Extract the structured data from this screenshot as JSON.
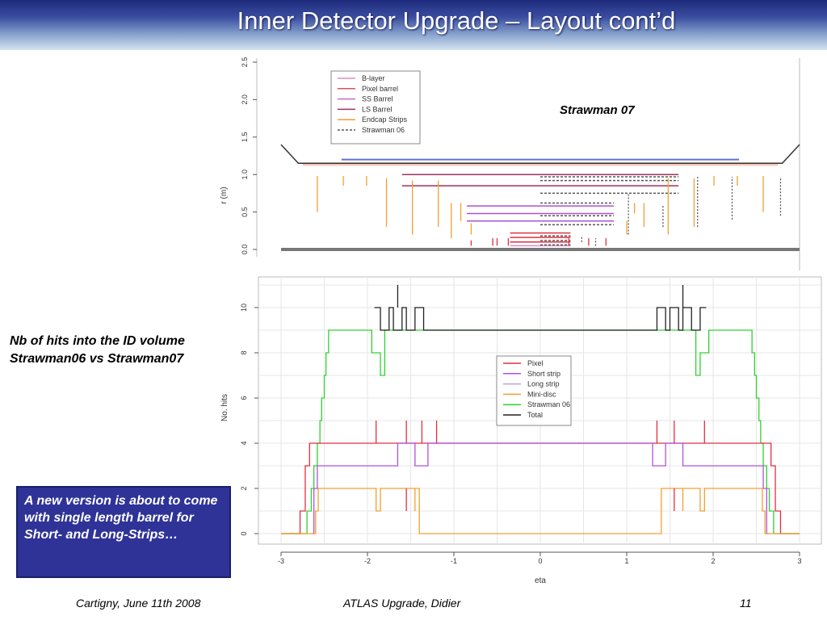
{
  "slide": {
    "title": "Inner Detector Upgrade – Layout cont’d",
    "side_label_line1": "Nb of hits into the ID volume",
    "side_label_line2": "Strawman06 vs Strawman07",
    "note": "A new version is about to come with single length barrel for Short- and Long-Strips…",
    "footer_left": "Cartigny, June 11th 2008",
    "footer_center": "ATLAS Upgrade, Didier",
    "footer_page": "11"
  },
  "chart_data": [
    {
      "type": "line",
      "annotation": "Strawman 07",
      "ylabel": "r (m)",
      "ylim": [
        0,
        2.5
      ],
      "yticks": [
        "0.0",
        "0.5",
        "1.0",
        "1.5",
        "2.0",
        "2.5"
      ],
      "legend": {
        "position": "top-left",
        "entries": [
          {
            "name": "B-layer",
            "color": "#d98fc4",
            "dashed": false
          },
          {
            "name": "Pixel barrel",
            "color": "#e0505a",
            "dashed": false
          },
          {
            "name": "SS Barrel",
            "color": "#c06ad0",
            "dashed": false
          },
          {
            "name": "LS Barrel",
            "color": "#a03060",
            "dashed": false
          },
          {
            "name": "Endcap Strips",
            "color": "#f0a030",
            "dashed": false
          },
          {
            "name": "Strawman 06",
            "color": "#555555",
            "dashed": true
          }
        ]
      },
      "segments": [
        {
          "name": "Beam pipe",
          "x": [
            -3,
            3
          ],
          "y": [
            0.0,
            0.0
          ],
          "color": "#777777",
          "width": 4
        },
        {
          "name": "Outer boundary",
          "x": [
            -3,
            -2.8,
            2.8,
            3
          ],
          "y": [
            1.4,
            1.15,
            1.15,
            1.4
          ],
          "color": "#333333",
          "width": 1.5
        },
        {
          "name": "Outer barrel",
          "x": [
            -2.3,
            2.3
          ],
          "y": [
            1.2,
            1.2
          ],
          "color": "#6070d0",
          "width": 2
        },
        {
          "name": "LS Barrel",
          "x": [
            -1.6,
            1.6
          ],
          "y": [
            1.0,
            1.0
          ],
          "color": "#a03060",
          "width": 1.5
        },
        {
          "name": "LS Barrel",
          "x": [
            -1.6,
            1.6
          ],
          "y": [
            0.85,
            0.85
          ],
          "color": "#a03060",
          "width": 1.5
        },
        {
          "name": "SS Barrel",
          "x": [
            -0.85,
            0.85
          ],
          "y": [
            0.58,
            0.58
          ],
          "color": "#b050d0",
          "width": 1.5
        },
        {
          "name": "SS Barrel",
          "x": [
            -0.85,
            0.85
          ],
          "y": [
            0.48,
            0.48
          ],
          "color": "#b050d0",
          "width": 1.5
        },
        {
          "name": "SS Barrel",
          "x": [
            -0.85,
            0.85
          ],
          "y": [
            0.38,
            0.38
          ],
          "color": "#b050d0",
          "width": 1.5
        },
        {
          "name": "Pixel barrel",
          "x": [
            -0.35,
            0.35
          ],
          "y": [
            0.22,
            0.22
          ],
          "color": "#e03040",
          "width": 1.5
        },
        {
          "name": "Pixel barrel",
          "x": [
            -0.35,
            0.35
          ],
          "y": [
            0.16,
            0.16
          ],
          "color": "#e03040",
          "width": 1.5
        },
        {
          "name": "Pixel barrel",
          "x": [
            -0.35,
            0.35
          ],
          "y": [
            0.1,
            0.1
          ],
          "color": "#e03040",
          "width": 1.5
        },
        {
          "name": "B-layer",
          "x": [
            -0.35,
            0.35
          ],
          "y": [
            0.05,
            0.05
          ],
          "color": "#d98fc4",
          "width": 1.5
        },
        {
          "name": "Strawman 06",
          "x": [
            0,
            1.6
          ],
          "y": [
            0.97,
            0.97
          ],
          "color": "#555555",
          "dashed": true
        },
        {
          "name": "Strawman 06",
          "x": [
            0,
            1.6
          ],
          "y": [
            0.92,
            0.92
          ],
          "color": "#555555",
          "dashed": true
        },
        {
          "name": "Strawman 06",
          "x": [
            0,
            1.6
          ],
          "y": [
            0.75,
            0.75
          ],
          "color": "#555555",
          "dashed": true
        },
        {
          "name": "Strawman 06",
          "x": [
            0,
            0.85
          ],
          "y": [
            0.62,
            0.62
          ],
          "color": "#555555",
          "dashed": true
        },
        {
          "name": "Strawman 06",
          "x": [
            0,
            0.85
          ],
          "y": [
            0.45,
            0.45
          ],
          "color": "#555555",
          "dashed": true
        },
        {
          "name": "Strawman 06",
          "x": [
            0,
            0.85
          ],
          "y": [
            0.33,
            0.33
          ],
          "color": "#555555",
          "dashed": true
        },
        {
          "name": "Strawman 06",
          "x": [
            0,
            0.35
          ],
          "y": [
            0.18,
            0.18
          ],
          "color": "#555555",
          "dashed": true
        },
        {
          "name": "Strawman 06",
          "x": [
            0,
            0.35
          ],
          "y": [
            0.12,
            0.12
          ],
          "color": "#555555",
          "dashed": true
        },
        {
          "name": "Strawman 06",
          "x": [
            0,
            0.35
          ],
          "y": [
            0.06,
            0.06
          ],
          "color": "#555555",
          "dashed": true
        }
      ],
      "verticals": [
        {
          "x": -2.58,
          "y": [
            0.5,
            0.98
          ],
          "color": "#f0a030"
        },
        {
          "x": -2.28,
          "y": [
            0.85,
            0.98
          ],
          "color": "#f0a030"
        },
        {
          "x": -2.01,
          "y": [
            0.85,
            0.98
          ],
          "color": "#f0a030"
        },
        {
          "x": -1.78,
          "y": [
            0.3,
            0.95
          ],
          "color": "#f0a030"
        },
        {
          "x": -1.48,
          "y": [
            0.2,
            0.92
          ],
          "color": "#f0a030"
        },
        {
          "x": -1.18,
          "y": [
            0.3,
            0.92
          ],
          "color": "#f0a030"
        },
        {
          "x": -1.03,
          "y": [
            0.15,
            0.62
          ],
          "color": "#f0a030"
        },
        {
          "x": -0.92,
          "y": [
            0.38,
            0.62
          ],
          "color": "#f0a030"
        },
        {
          "x": -0.8,
          "y": [
            0.2,
            0.35
          ],
          "color": "#f0a030"
        },
        {
          "x": -0.8,
          "y": [
            0.05,
            0.12
          ],
          "color": "#e03040"
        },
        {
          "x": -0.55,
          "y": [
            0.05,
            0.15
          ],
          "color": "#e03040"
        },
        {
          "x": -0.5,
          "y": [
            0.05,
            0.15
          ],
          "color": "#e03040"
        },
        {
          "x": -0.37,
          "y": [
            0.05,
            0.15
          ],
          "color": "#e03040"
        },
        {
          "x": 0.33,
          "y": [
            0.05,
            0.15
          ],
          "color": "#e03040"
        },
        {
          "x": 0.48,
          "y": [
            0.1,
            0.18
          ],
          "color": "#555555",
          "dashed": true
        },
        {
          "x": 0.56,
          "y": [
            0.05,
            0.15
          ],
          "color": "#e03040"
        },
        {
          "x": 0.64,
          "y": [
            0.05,
            0.15
          ],
          "color": "#555555",
          "dashed": true
        },
        {
          "x": 0.76,
          "y": [
            0.05,
            0.15
          ],
          "color": "#e03040"
        },
        {
          "x": 1.0,
          "y": [
            0.2,
            0.38
          ],
          "color": "#f0a030"
        },
        {
          "x": 1.02,
          "y": [
            0.2,
            0.75
          ],
          "color": "#555555",
          "dashed": true
        },
        {
          "x": 1.09,
          "y": [
            0.48,
            0.62
          ],
          "color": "#f0a030"
        },
        {
          "x": 1.2,
          "y": [
            0.3,
            0.62
          ],
          "color": "#f0a030"
        },
        {
          "x": 1.42,
          "y": [
            0.3,
            0.6
          ],
          "color": "#555555",
          "dashed": true
        },
        {
          "x": 1.48,
          "y": [
            0.2,
            0.95
          ],
          "color": "#f0a030"
        },
        {
          "x": 1.78,
          "y": [
            0.3,
            0.95
          ],
          "color": "#f0a030"
        },
        {
          "x": 1.82,
          "y": [
            0.3,
            0.97
          ],
          "color": "#555555",
          "dashed": true
        },
        {
          "x": 2.01,
          "y": [
            0.85,
            0.98
          ],
          "color": "#f0a030"
        },
        {
          "x": 2.22,
          "y": [
            0.4,
            0.97
          ],
          "color": "#555555",
          "dashed": true
        },
        {
          "x": 2.28,
          "y": [
            0.85,
            0.98
          ],
          "color": "#f0a030"
        },
        {
          "x": 2.58,
          "y": [
            0.5,
            0.98
          ],
          "color": "#f0a030"
        },
        {
          "x": 2.78,
          "y": [
            0.45,
            0.97
          ],
          "color": "#555555",
          "dashed": true
        }
      ]
    },
    {
      "type": "line",
      "xlabel": "eta",
      "ylabel": "No. hits",
      "xlim": [
        -3,
        3
      ],
      "ylim": [
        0,
        11
      ],
      "xticks": [
        "-3",
        "-2",
        "-1",
        "0",
        "1",
        "2",
        "3"
      ],
      "yticks": [
        "0",
        "2",
        "4",
        "6",
        "8",
        "10"
      ],
      "grid": true,
      "legend": {
        "position": "center-right",
        "entries": [
          {
            "name": "Pixel",
            "color": "#e03040"
          },
          {
            "name": "Short strip",
            "color": "#b050e0"
          },
          {
            "name": "Long strip",
            "color": "#c0a0e0"
          },
          {
            "name": "Mini-disc",
            "color": "#f0a030"
          },
          {
            "name": "Strawman 06",
            "color": "#30d030"
          },
          {
            "name": "Total",
            "color": "#222222"
          }
        ]
      },
      "series": [
        {
          "name": "Strawman 06",
          "color": "#30d030",
          "x": [
            -3,
            -2.7,
            -2.7,
            -2.65,
            -2.65,
            -2.62,
            -2.62,
            -2.58,
            -2.58,
            -2.55,
            -2.55,
            -2.53,
            -2.53,
            -2.5,
            -2.5,
            -2.48,
            -2.48,
            -2.45,
            -2.45,
            -1.95,
            -1.95,
            -1.85,
            -1.85,
            -1.8,
            -1.8,
            1.8,
            1.8,
            1.85,
            1.85,
            1.95,
            1.95,
            2.45,
            2.45,
            2.48,
            2.48,
            2.5,
            2.5,
            2.53,
            2.53,
            2.55,
            2.55,
            2.58,
            2.58,
            2.62,
            2.62,
            2.65,
            2.65,
            2.7,
            2.7,
            3
          ],
          "y": [
            0,
            0,
            1,
            1,
            2,
            2,
            3,
            3,
            4,
            4,
            5,
            5,
            6,
            6,
            7,
            7,
            8,
            8,
            9,
            9,
            8,
            8,
            7,
            7,
            9,
            9,
            7,
            7,
            8,
            8,
            9,
            9,
            8,
            8,
            7,
            7,
            6,
            6,
            5,
            5,
            4,
            4,
            3,
            3,
            2,
            2,
            1,
            1,
            0,
            0
          ]
        },
        {
          "name": "Pixel",
          "color": "#e03040",
          "x": [
            -3,
            -2.78,
            -2.78,
            -2.72,
            -2.72,
            -2.67,
            -2.67,
            2.67,
            2.67,
            2.72,
            2.72,
            2.78,
            2.78,
            3
          ],
          "y": [
            0,
            0,
            1,
            1,
            3,
            3,
            4,
            4,
            3,
            3,
            1,
            1,
            0,
            0
          ]
        },
        {
          "name": "Short strip",
          "color": "#b050e0",
          "x": [
            -2.65,
            -2.62,
            -2.62,
            -2.58,
            -2.58,
            -1.65,
            -1.65,
            -1.45,
            -1.45,
            -1.3,
            -1.3,
            1.3,
            1.3,
            1.45,
            1.45,
            1.65,
            1.65,
            2.58,
            2.58,
            2.62,
            2.62,
            2.65
          ],
          "y": [
            0,
            0,
            2,
            2,
            3,
            3,
            4,
            4,
            3,
            3,
            4,
            4,
            3,
            3,
            4,
            4,
            3,
            3,
            2,
            2,
            0,
            0
          ]
        },
        {
          "name": "Mini-disc",
          "color": "#f0a030",
          "x": [
            -3,
            -2.6,
            -2.6,
            -2.57,
            -2.57,
            -1.9,
            -1.9,
            -1.85,
            -1.85,
            -1.4,
            -1.4,
            1.4,
            1.4,
            1.85,
            1.85,
            1.9,
            1.9,
            2.57,
            2.57,
            2.6,
            2.6,
            3
          ],
          "y": [
            0,
            0,
            1,
            1,
            2,
            2,
            1,
            1,
            2,
            2,
            0,
            0,
            2,
            2,
            1,
            1,
            2,
            2,
            1,
            1,
            0,
            0
          ]
        },
        {
          "name": "Total",
          "color": "#222222",
          "x": [
            -1.92,
            -1.85,
            -1.85,
            -1.75,
            -1.75,
            -1.7,
            -1.7,
            -1.6,
            -1.6,
            -1.55,
            -1.55,
            -1.45,
            -1.45,
            -1.35,
            -1.35,
            -1.3,
            1.3,
            1.35,
            1.35,
            1.45,
            1.45,
            1.5,
            1.5,
            1.6,
            1.6,
            1.65,
            1.65,
            1.75,
            1.75,
            1.85,
            1.85,
            1.92
          ],
          "y": [
            10,
            10,
            9,
            9,
            10,
            10,
            9,
            9,
            10,
            10,
            9,
            9,
            10,
            10,
            9,
            9,
            9,
            9,
            10,
            10,
            9,
            9,
            10,
            10,
            9,
            9,
            10,
            10,
            9,
            9,
            10,
            10
          ]
        }
      ],
      "spikes": [
        {
          "x": -1.9,
          "y": [
            4,
            5
          ],
          "color": "#e03040"
        },
        {
          "x": -1.55,
          "y": [
            4,
            5
          ],
          "color": "#e03040"
        },
        {
          "x": -1.55,
          "y": [
            1,
            2
          ],
          "color": "#e03040"
        },
        {
          "x": -1.37,
          "y": [
            4,
            5
          ],
          "color": "#e03040"
        },
        {
          "x": -1.2,
          "y": [
            4,
            5
          ],
          "color": "#e03040"
        },
        {
          "x": -1.45,
          "y": [
            1,
            2
          ],
          "color": "#f0a030"
        },
        {
          "x": 1.35,
          "y": [
            4,
            5
          ],
          "color": "#e03040"
        },
        {
          "x": 1.55,
          "y": [
            4,
            5
          ],
          "color": "#e03040"
        },
        {
          "x": 1.55,
          "y": [
            1,
            2
          ],
          "color": "#e03040"
        },
        {
          "x": 1.9,
          "y": [
            4,
            5
          ],
          "color": "#e03040"
        },
        {
          "x": 1.65,
          "y": [
            1,
            2
          ],
          "color": "#f0a030"
        },
        {
          "x": -1.65,
          "y": [
            10,
            11
          ],
          "color": "#222222"
        },
        {
          "x": 1.65,
          "y": [
            10,
            11
          ],
          "color": "#222222"
        }
      ]
    }
  ]
}
